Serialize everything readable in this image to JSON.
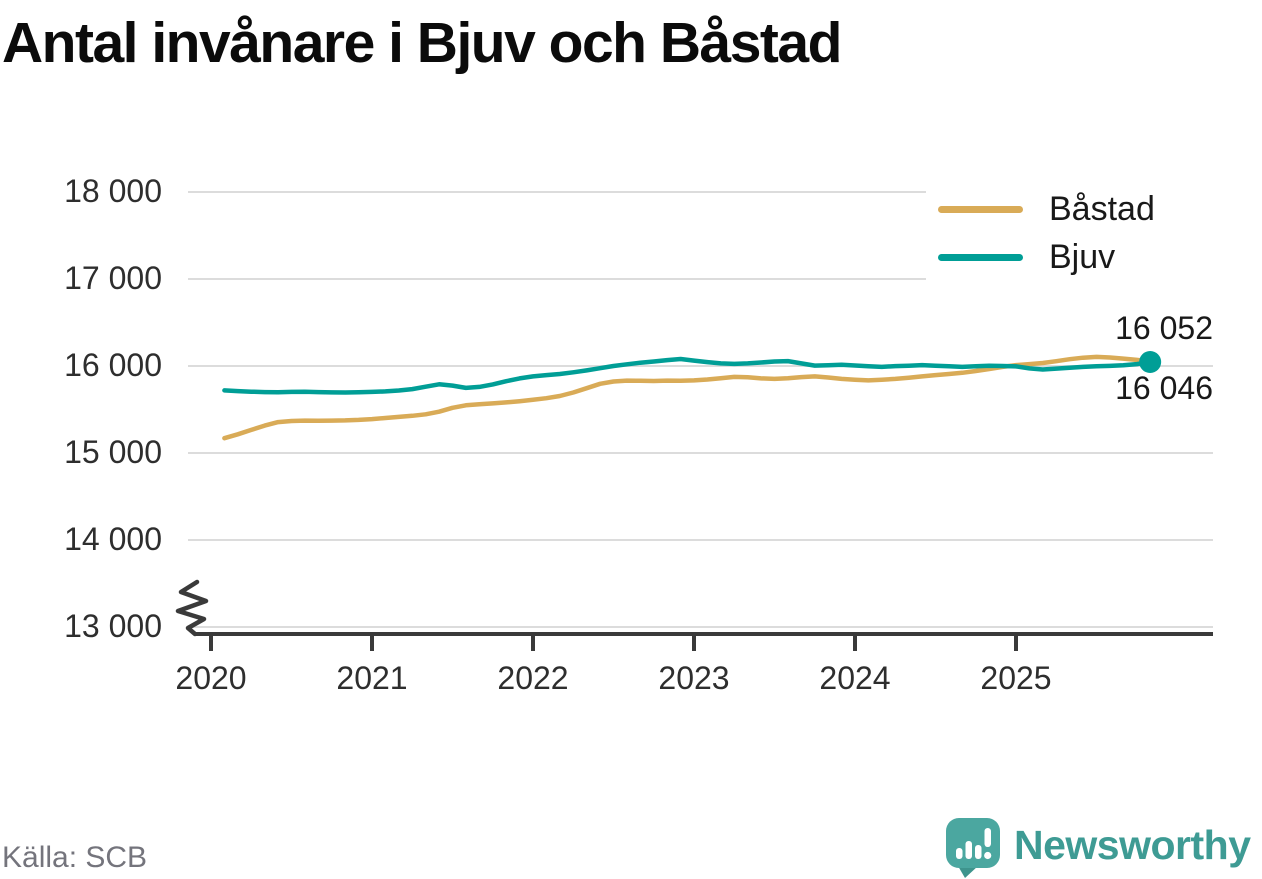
{
  "title": "Antal invånare i Bjuv och Båstad",
  "source": "Källa: SCB",
  "branding": {
    "name": "Newsworthy",
    "wordmark_color": "#3E9B94",
    "icon": "newsworthy-bubble-barchart-icon",
    "icon_color": "#4BA7A0"
  },
  "colors": {
    "bastad_line": "#D9AB57",
    "bjuv_line": "#009E96",
    "gridline": "#dcdcdc",
    "axis": "#3a3a3a",
    "text_dark": "#191919",
    "text_muted": "#74747c"
  },
  "chart_data": {
    "type": "line",
    "title": "Antal invånare i Bjuv och Båstad",
    "xlabel": "",
    "ylabel": "",
    "x_unit": "month",
    "x_start": "2020-02",
    "x_end": "2025-11",
    "xticks": [
      "2020",
      "2021",
      "2022",
      "2023",
      "2024",
      "2025"
    ],
    "xtick_values": [
      2020,
      2021,
      2022,
      2023,
      2024,
      2025
    ],
    "ytick_labels": [
      "18 000",
      "17 000",
      "16 000",
      "15 000",
      "14 000",
      "13 000"
    ],
    "ytick_values": [
      18000,
      17000,
      16000,
      15000,
      14000,
      13000
    ],
    "ylim": [
      13000,
      18000
    ],
    "axis_break_at_bottom": true,
    "grid": "horizontal",
    "legend_position": "top-right",
    "end_dot_series": "Bjuv",
    "series": [
      {
        "name": "Båstad",
        "color": "#D9AB57",
        "end_label": "16 052",
        "values": [
          15170,
          15215,
          15265,
          15315,
          15355,
          15368,
          15372,
          15370,
          15372,
          15375,
          15380,
          15390,
          15402,
          15415,
          15428,
          15445,
          15475,
          15520,
          15548,
          15560,
          15570,
          15582,
          15595,
          15612,
          15630,
          15655,
          15695,
          15745,
          15795,
          15822,
          15832,
          15830,
          15828,
          15832,
          15830,
          15835,
          15845,
          15860,
          15875,
          15870,
          15858,
          15852,
          15860,
          15872,
          15880,
          15868,
          15852,
          15842,
          15835,
          15842,
          15852,
          15865,
          15880,
          15895,
          15908,
          15922,
          15942,
          15965,
          15990,
          16010,
          16022,
          16035,
          16055,
          16078,
          16095,
          16105,
          16098,
          16085,
          16070,
          16052
        ]
      },
      {
        "name": "Bjuv",
        "color": "#009E96",
        "end_label": "16 046",
        "values": [
          15720,
          15712,
          15705,
          15700,
          15698,
          15702,
          15705,
          15700,
          15696,
          15695,
          15698,
          15702,
          15708,
          15718,
          15735,
          15762,
          15790,
          15775,
          15748,
          15760,
          15788,
          15825,
          15858,
          15880,
          15895,
          15908,
          15928,
          15950,
          15975,
          16000,
          16020,
          16038,
          16052,
          16068,
          16080,
          16062,
          16045,
          16030,
          16024,
          16030,
          16040,
          16052,
          16056,
          16030,
          16005,
          16008,
          16014,
          16006,
          15996,
          15990,
          15999,
          16004,
          16010,
          16002,
          15996,
          15990,
          15997,
          16004,
          16000,
          15995,
          15972,
          15960,
          15970,
          15980,
          15990,
          15996,
          16001,
          16008,
          16022,
          16046
        ]
      }
    ]
  }
}
